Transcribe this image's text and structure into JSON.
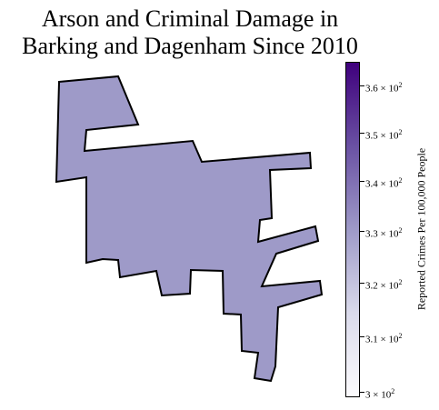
{
  "title": {
    "line1": "Arson and Criminal Damage in",
    "line2": "Barking and Dagenham Since 2010"
  },
  "region": {
    "name": "Barking and Dagenham",
    "value": 333,
    "fill_color": "#9e9ac8",
    "edge_color": "#000000"
  },
  "colorbar": {
    "label": "Reported Crimes Per 100,000 People",
    "scale": "log",
    "colormap": "Purples",
    "vmin": 299,
    "vmax": 365,
    "color_low": "#fcfbfd",
    "color_high": "#3f007d",
    "ticks": [
      {
        "value": 300,
        "mantissa": "3",
        "base": "10",
        "exp": "2"
      },
      {
        "value": 310,
        "mantissa": "3.1",
        "base": "10",
        "exp": "2"
      },
      {
        "value": 320,
        "mantissa": "3.2",
        "base": "10",
        "exp": "2"
      },
      {
        "value": 330,
        "mantissa": "3.3",
        "base": "10",
        "exp": "2"
      },
      {
        "value": 340,
        "mantissa": "3.4",
        "base": "10",
        "exp": "2"
      },
      {
        "value": 350,
        "mantissa": "3.5",
        "base": "10",
        "exp": "2"
      },
      {
        "value": 360,
        "mantissa": "3.6",
        "base": "10",
        "exp": "2"
      }
    ]
  }
}
